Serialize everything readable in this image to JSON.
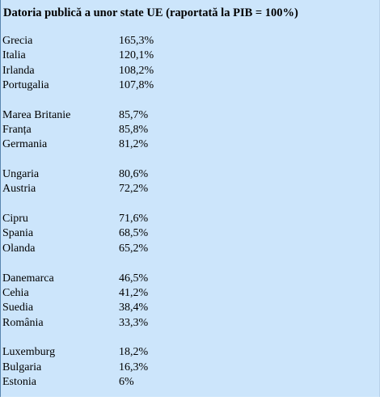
{
  "title": "Datoria publică a unor state UE (raportată la PIB = 100%)",
  "groups": [
    [
      [
        "Grecia",
        "165,3%"
      ],
      [
        "Italia",
        "120,1%"
      ],
      [
        "Irlanda",
        "108,2%"
      ],
      [
        "Portugalia",
        "107,8%"
      ]
    ],
    [
      [
        "Marea Britanie",
        "85,7%"
      ],
      [
        "Franța",
        "85,8%"
      ],
      [
        "Germania",
        "81,2%"
      ]
    ],
    [
      [
        "Ungaria",
        "80,6%"
      ],
      [
        "Austria",
        "72,2%"
      ]
    ],
    [
      [
        "Cipru",
        "71,6%"
      ],
      [
        "Spania",
        "68,5%"
      ],
      [
        "Olanda",
        "65,2%"
      ]
    ],
    [
      [
        "Danemarca",
        "46,5%"
      ],
      [
        "Cehia",
        "41,2%"
      ],
      [
        "Suedia",
        "38,4%"
      ],
      [
        "România",
        "33,3%"
      ]
    ],
    [
      [
        "Luxemburg",
        "18,2%"
      ],
      [
        "Bulgaria",
        "16,3%"
      ],
      [
        "Estonia",
        "6%"
      ]
    ]
  ]
}
